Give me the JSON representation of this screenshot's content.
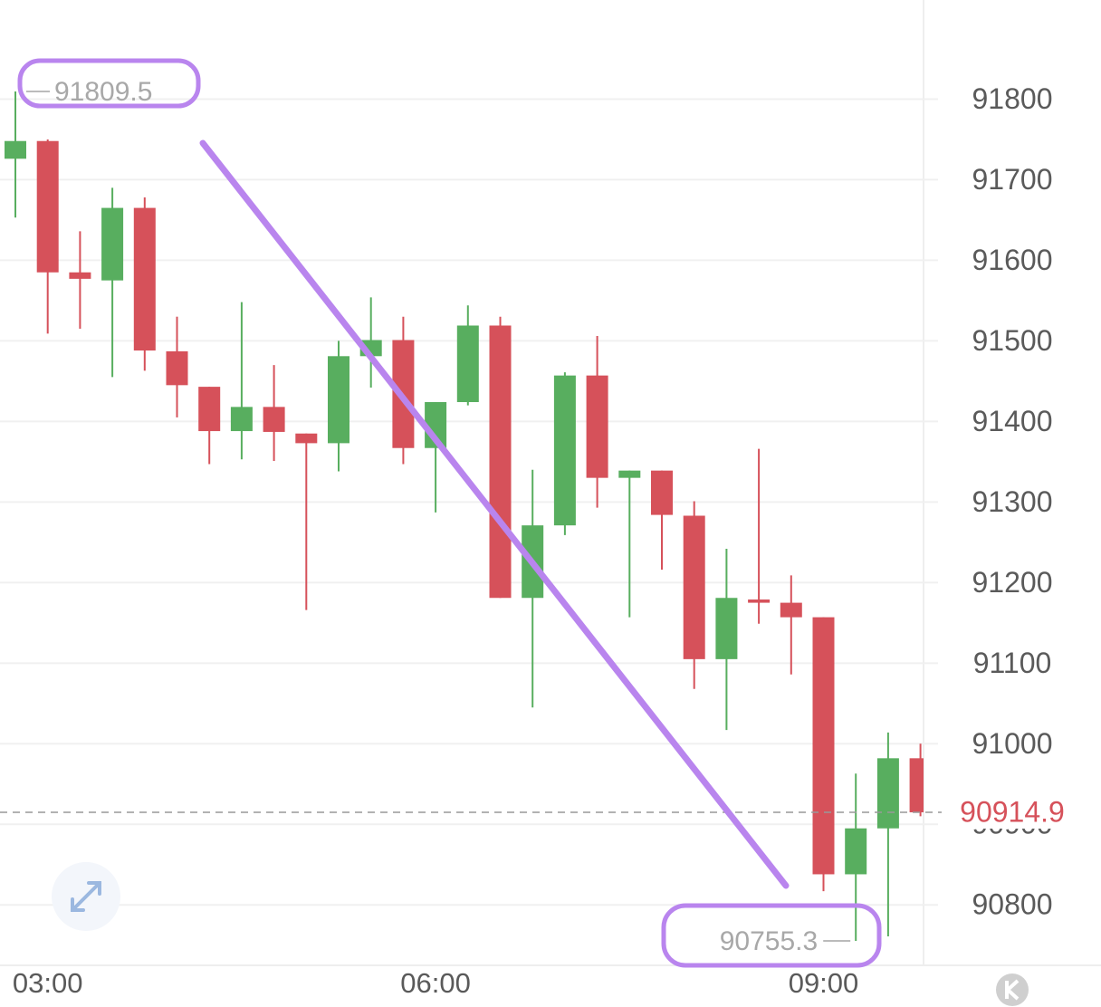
{
  "chart_data": {
    "type": "candlestick",
    "categories": [
      null,
      "03:00",
      null,
      null,
      null,
      null,
      null,
      null,
      null,
      null,
      null,
      null,
      null,
      "06:00",
      null,
      null,
      null,
      null,
      null,
      null,
      null,
      null,
      null,
      null,
      null,
      "09:00",
      null,
      null,
      null
    ],
    "open": [
      91726,
      91748,
      91585,
      91575,
      91665,
      91487,
      91443,
      91388,
      91418,
      91385,
      91373,
      91481,
      91501,
      91367,
      91424,
      91519,
      91181,
      91271,
      91457,
      91330,
      91339,
      91283,
      91105,
      91179,
      91175,
      91157,
      90838,
      90895,
      90982
    ],
    "high": [
      91809.5,
      91750,
      91636,
      91690,
      91678,
      91530,
      91443,
      91548,
      91470,
      91385,
      91500,
      91554,
      91530,
      91424,
      91544,
      91530,
      91340,
      91461,
      91506,
      91339,
      91339,
      91301,
      91242,
      91366,
      91209,
      91157,
      90963,
      91014,
      91000
    ],
    "low": [
      91653,
      91509,
      91515,
      91455,
      91463,
      91405,
      91347,
      91353,
      91351,
      91166,
      91338,
      91442,
      91347,
      91287,
      91420,
      91181,
      91045,
      91259,
      91293,
      91157,
      91216,
      91068,
      91017,
      91149,
      91086,
      90817,
      90755.3,
      90761,
      90910
    ],
    "close": [
      91748,
      91585,
      91577,
      91665,
      91488,
      91445,
      91388,
      91418,
      91387,
      91373,
      91481,
      91501,
      91367,
      91424,
      91519,
      91181,
      91271,
      91457,
      91330,
      91339,
      91284,
      91105,
      91181,
      91175,
      91157,
      90838,
      90895,
      90982,
      90914.9
    ],
    "up_color": "#58ae5f",
    "down_color": "#d6515a",
    "ylim": [
      90725,
      91923
    ],
    "yticks": [
      90800,
      90900,
      91000,
      91100,
      91200,
      91300,
      91400,
      91500,
      91600,
      91700,
      91800
    ],
    "grid": true
  }
}
